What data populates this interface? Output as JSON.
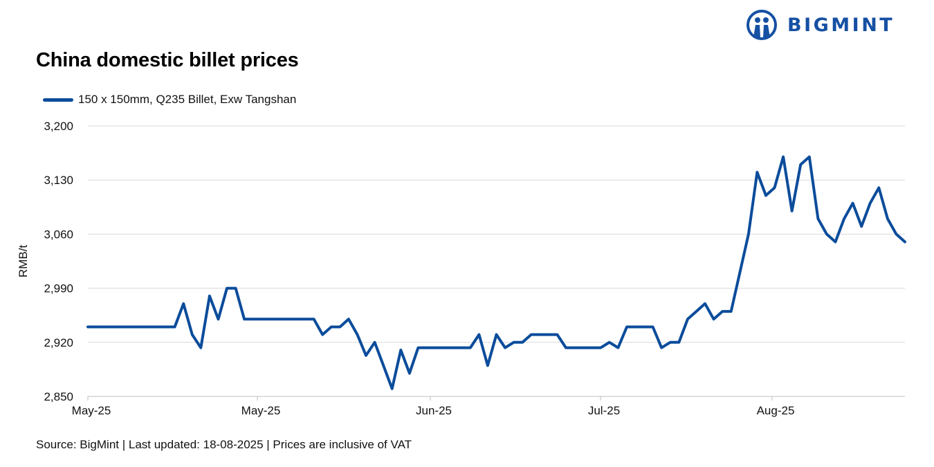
{
  "brand": {
    "name": "BIGMINT",
    "color": "#1550a3",
    "icon": "bigmint-logo-icon"
  },
  "chart_data": {
    "type": "line",
    "title": "China domestic billet prices",
    "ylabel": "RMB/t",
    "xlabel": "",
    "ylim": [
      2850,
      3200
    ],
    "yticks": [
      2850,
      2920,
      2990,
      3060,
      3130,
      3200
    ],
    "ytick_labels": [
      "2,850",
      "2,920",
      "2,990",
      "3,060",
      "3,130",
      "3,200"
    ],
    "xtick_labels": [
      "May-25",
      "May-25",
      "Jun-25",
      "Jul-25",
      "Aug-25"
    ],
    "grid": true,
    "legend_position": "top-left",
    "series": [
      {
        "name": "150 x 150mm, Q235 Billet, Exw Tangshan",
        "color": "#0b4c9b",
        "values": [
          2940,
          2940,
          2940,
          2940,
          2940,
          2940,
          2940,
          2940,
          2940,
          2940,
          2940,
          2970,
          2930,
          2913,
          2980,
          2950,
          2990,
          2990,
          2950,
          2950,
          2950,
          2950,
          2950,
          2950,
          2950,
          2950,
          2950,
          2930,
          2940,
          2940,
          2950,
          2930,
          2903,
          2920,
          2890,
          2860,
          2910,
          2880,
          2913,
          2913,
          2913,
          2913,
          2913,
          2913,
          2913,
          2930,
          2890,
          2930,
          2913,
          2920,
          2920,
          2930,
          2930,
          2930,
          2930,
          2913,
          2913,
          2913,
          2913,
          2913,
          2920,
          2913,
          2940,
          2940,
          2940,
          2940,
          2913,
          2920,
          2920,
          2950,
          2960,
          2970,
          2950,
          2960,
          2960,
          3010,
          3060,
          3140,
          3110,
          3120,
          3160,
          3090,
          3150,
          3160,
          3080,
          3060,
          3050,
          3080,
          3100,
          3070,
          3100,
          3120,
          3080,
          3060,
          3050
        ]
      }
    ]
  },
  "source_text": "Source: BigMint | Last updated: 18-08-2025 | Prices are inclusive of VAT"
}
